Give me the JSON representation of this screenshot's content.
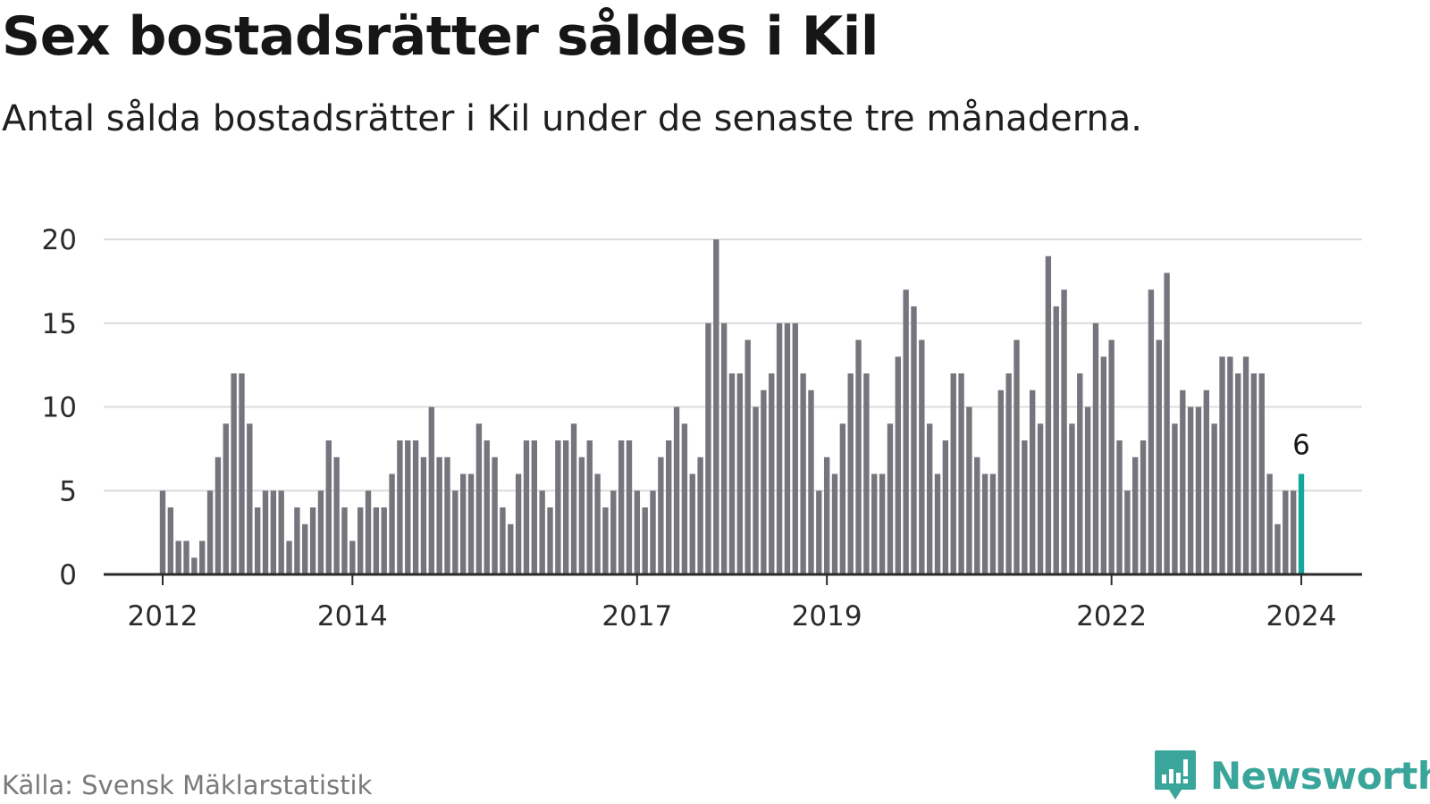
{
  "header": {
    "title": "Sex bostadsrätter såldes i Kil",
    "subtitle": "Antal sålda bostadsrätter i Kil under de senaste tre månaderna."
  },
  "footer": {
    "source": "Källa: Svensk Mäklarstatistik",
    "brand": "Newsworthy",
    "brand_icon": "bar-chart-speech-bubble-icon"
  },
  "colors": {
    "bar": "#75757d",
    "highlight": "#16a69b",
    "grid": "#dcdcdc",
    "axis": "#2b2b2b",
    "brand": "#3aa59a"
  },
  "chart_data": {
    "type": "bar",
    "title": "Sex bostadsrätter såldes i Kil",
    "subtitle": "Antal sålda bostadsrätter i Kil under de senaste tre månaderna.",
    "xlabel": "",
    "ylabel": "",
    "frequency": "monthly",
    "start": "2012-01",
    "end": "2024-01",
    "ylim": [
      0,
      20
    ],
    "yticks": [
      0,
      5,
      10,
      15,
      20
    ],
    "xticks": [
      {
        "label": "2012",
        "index": 0
      },
      {
        "label": "2014",
        "index": 24
      },
      {
        "label": "2017",
        "index": 60
      },
      {
        "label": "2019",
        "index": 84
      },
      {
        "label": "2022",
        "index": 120
      },
      {
        "label": "2024",
        "index": 144
      }
    ],
    "grid": true,
    "highlight": {
      "index": 144,
      "value": 6,
      "label": "6"
    },
    "values": [
      5,
      4,
      2,
      2,
      1,
      2,
      5,
      7,
      9,
      12,
      12,
      9,
      4,
      5,
      5,
      5,
      2,
      4,
      3,
      4,
      5,
      8,
      7,
      4,
      2,
      4,
      5,
      4,
      4,
      6,
      8,
      8,
      8,
      7,
      10,
      7,
      7,
      5,
      6,
      6,
      9,
      8,
      7,
      4,
      3,
      6,
      8,
      8,
      5,
      4,
      8,
      8,
      9,
      7,
      8,
      6,
      4,
      5,
      8,
      8,
      5,
      4,
      5,
      7,
      8,
      10,
      9,
      6,
      7,
      15,
      20,
      15,
      12,
      12,
      14,
      10,
      11,
      12,
      15,
      15,
      15,
      12,
      11,
      5,
      7,
      6,
      9,
      12,
      14,
      12,
      6,
      6,
      9,
      13,
      17,
      16,
      14,
      9,
      6,
      8,
      12,
      12,
      10,
      7,
      6,
      6,
      11,
      12,
      14,
      8,
      11,
      9,
      19,
      16,
      17,
      9,
      12,
      10,
      15,
      13,
      14,
      8,
      5,
      7,
      8,
      17,
      14,
      18,
      9,
      11,
      10,
      10,
      11,
      9,
      13,
      13,
      12,
      13,
      12,
      12,
      6,
      3,
      5,
      5,
      6
    ]
  }
}
